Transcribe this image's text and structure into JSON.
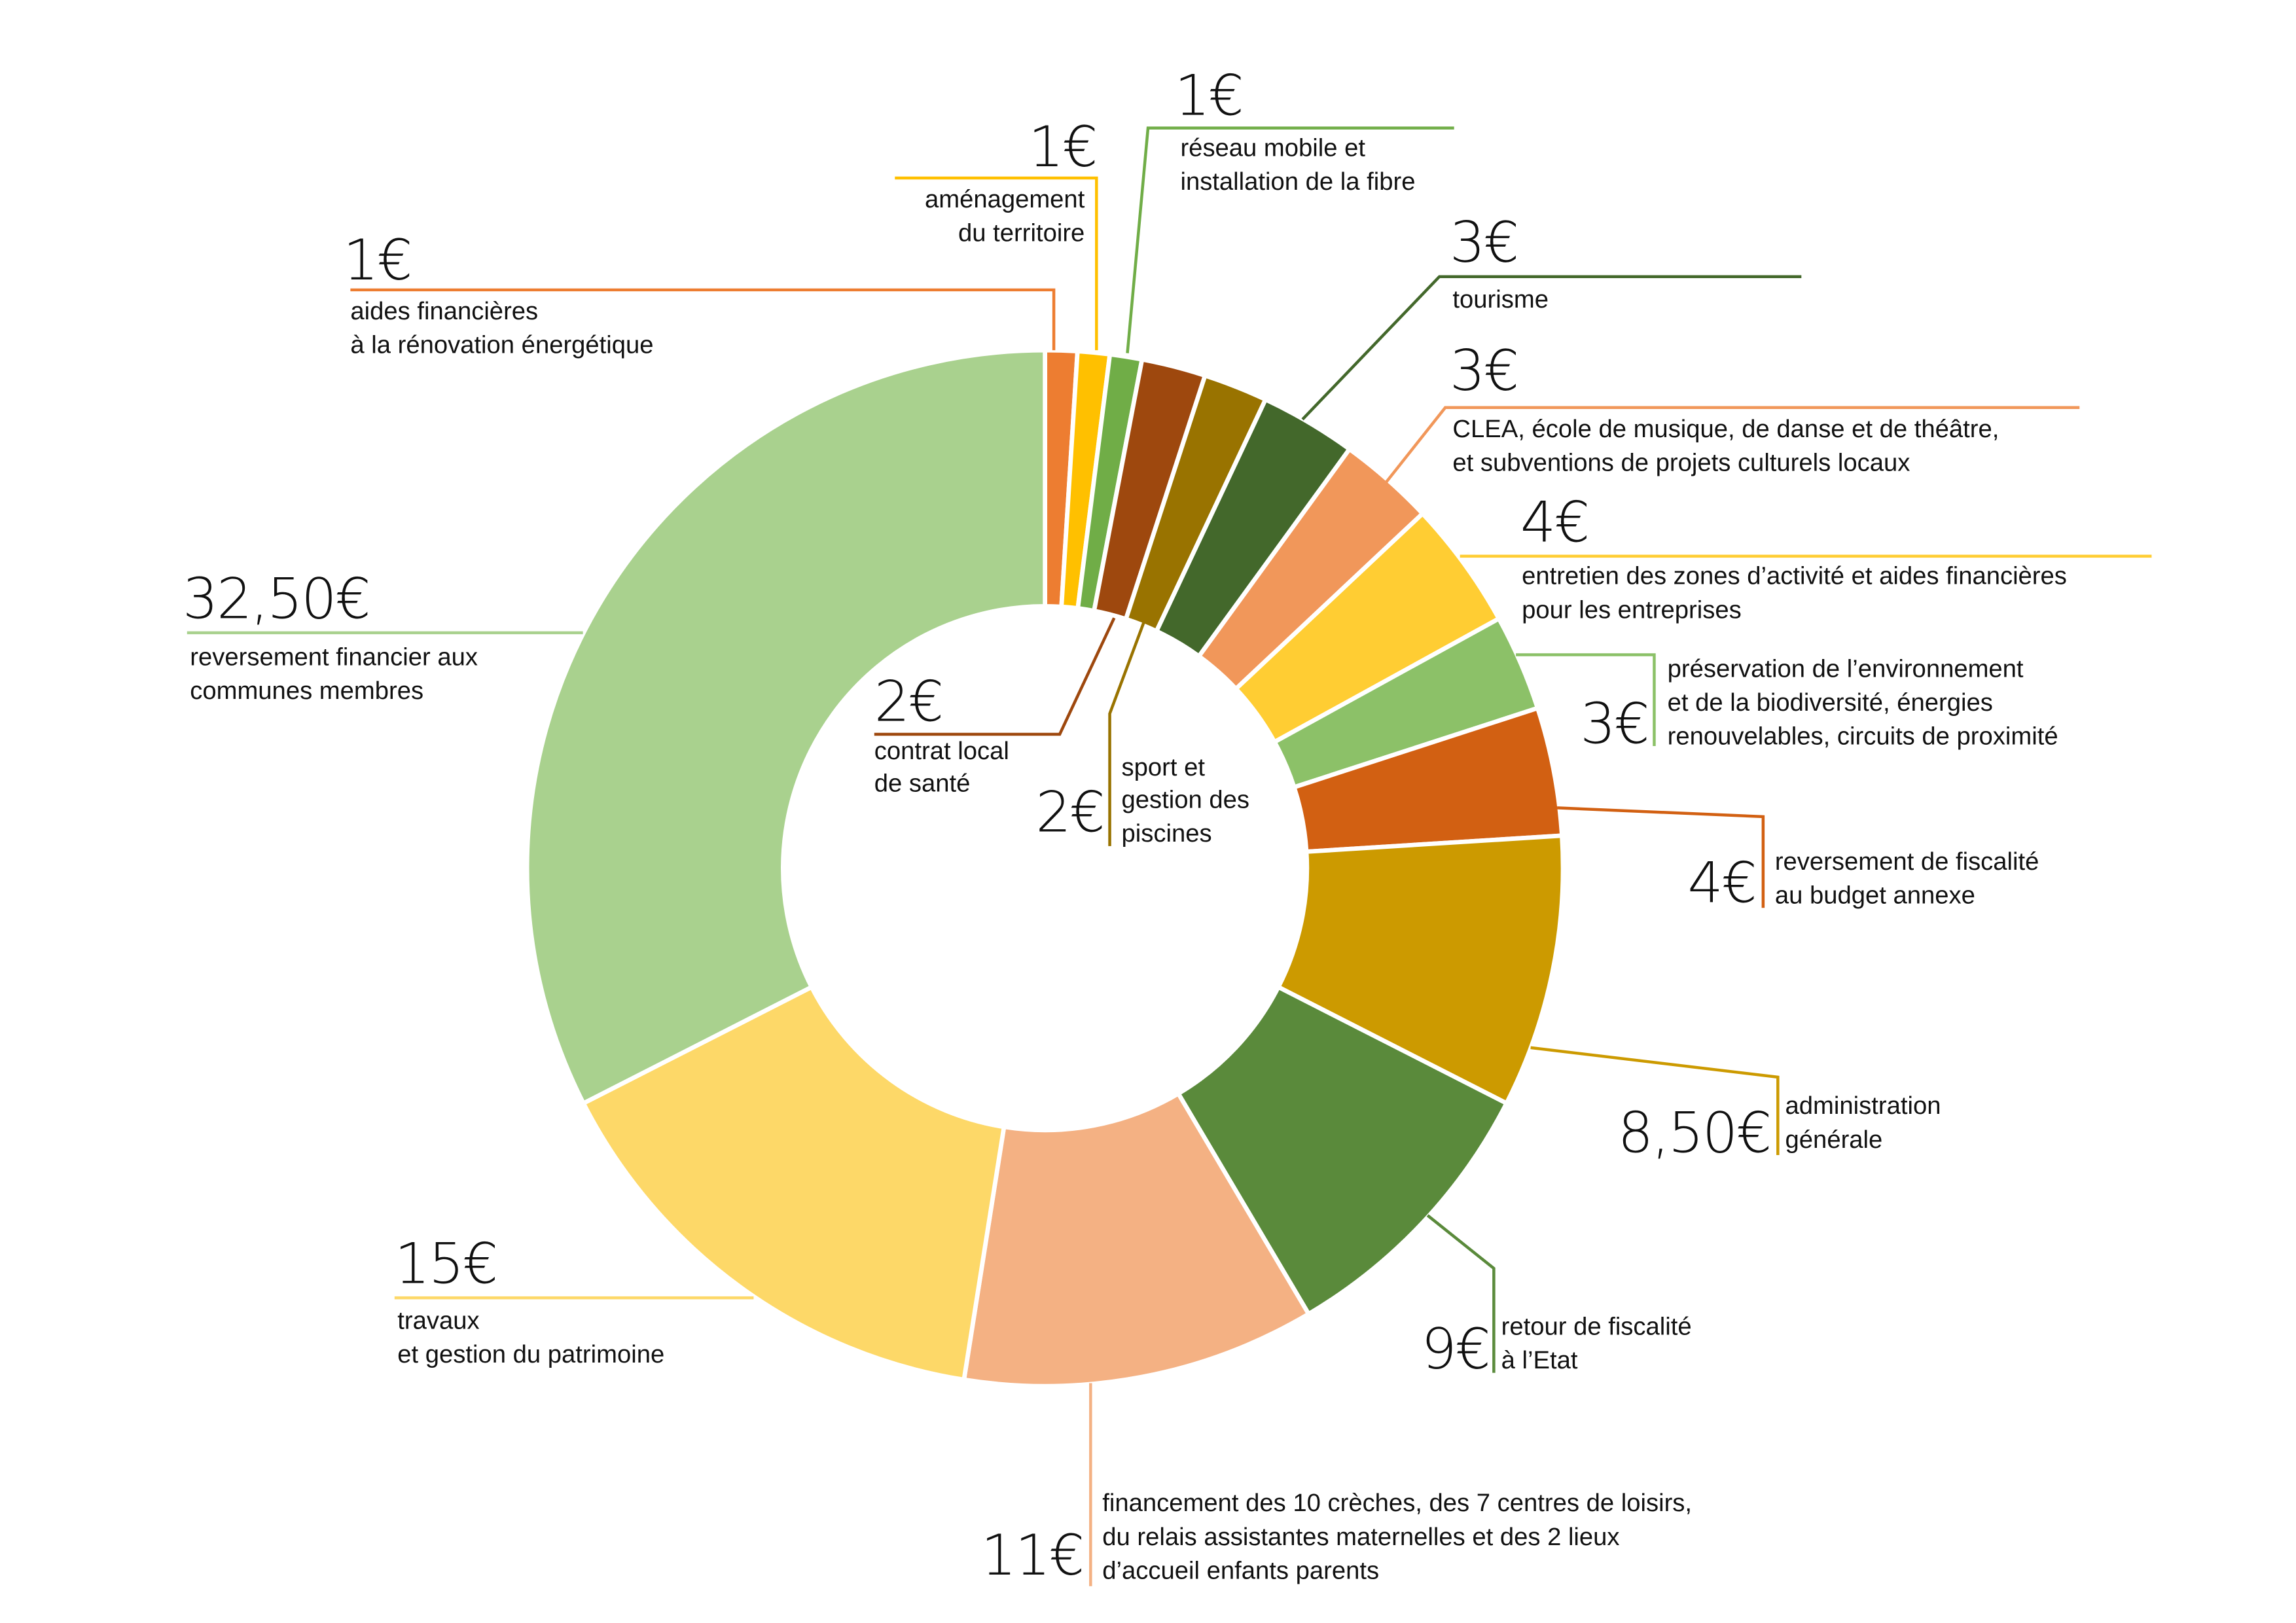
{
  "chart_data": {
    "type": "pie",
    "variant": "donut",
    "unit": "€",
    "slices": [
      {
        "value": 1,
        "value_label": "1€",
        "label": [
          "aides financières",
          "à la rénovation énergétique"
        ],
        "color": "#ED7D31"
      },
      {
        "value": 1,
        "value_label": "1€",
        "label": [
          "aménagement",
          "du territoire"
        ],
        "color": "#FFC000"
      },
      {
        "value": 1,
        "value_label": "1€",
        "label": [
          "réseau mobile et",
          "installation de la fibre"
        ],
        "color": "#70AD47"
      },
      {
        "value": 2,
        "value_label": "2€",
        "label": [
          "contrat local",
          "de santé"
        ],
        "color": "#9E480E"
      },
      {
        "value": 2,
        "value_label": "2€",
        "label": [
          "sport et",
          "gestion des",
          "piscines"
        ],
        "color": "#997300"
      },
      {
        "value": 3,
        "value_label": "3€",
        "label": [
          "tourisme"
        ],
        "color": "#43682B"
      },
      {
        "value": 3,
        "value_label": "3€",
        "label": [
          "CLEA, école de musique, de danse et de théâtre,",
          "et subventions de projets culturels locaux"
        ],
        "color": "#F1975A"
      },
      {
        "value": 4,
        "value_label": "4€",
        "label": [
          "entretien des zones d’activité et aides financières",
          "pour les entreprises"
        ],
        "color": "#FFCD33"
      },
      {
        "value": 3,
        "value_label": "3€",
        "label": [
          "préservation de l’environnement",
          "et de la biodiversité, énergies",
          "renouvelables, circuits de proximité"
        ],
        "color": "#8CC168"
      },
      {
        "value": 4,
        "value_label": "4€",
        "label": [
          "reversement de fiscalité",
          "au budget annexe"
        ],
        "color": "#D26012"
      },
      {
        "value": 8.5,
        "value_label": "8,50€",
        "label": [
          "administration",
          "générale"
        ],
        "color": "#CC9A00"
      },
      {
        "value": 9,
        "value_label": "9€",
        "label": [
          "retour de fiscalité",
          "à l’Etat"
        ],
        "color": "#5A8A3B"
      },
      {
        "value": 11,
        "value_label": "11€",
        "label": [
          "financement des 10 crèches, des 7 centres de loisirs,",
          "du relais assistantes maternelles et des 2 lieux",
          "d’accueil enfants parents"
        ],
        "color": "#F4B183"
      },
      {
        "value": 15,
        "value_label": "15€",
        "label": [
          "travaux",
          "et gestion du patrimoine"
        ],
        "color": "#FDD868"
      },
      {
        "value": 32.5,
        "value_label": "32,50€",
        "label": [
          "reversement financier aux",
          "communes membres"
        ],
        "color": "#A9D18E"
      }
    ]
  }
}
